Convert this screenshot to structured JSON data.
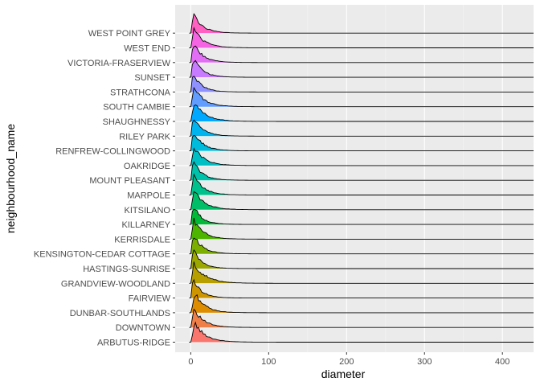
{
  "chart_data": {
    "type": "ridgeline",
    "xlabel": "diameter",
    "ylabel": "neighbourhood_name",
    "xlim": [
      -20,
      440
    ],
    "x_ticks": [
      0,
      100,
      200,
      300,
      400
    ],
    "x_tick_labels": [
      "0",
      "100",
      "200",
      "300",
      "400"
    ],
    "grid": true,
    "legend": "none",
    "categories": [
      "ARBUTUS-RIDGE",
      "DOWNTOWN",
      "DUNBAR-SOUTHLANDS",
      "FAIRVIEW",
      "GRANDVIEW-WOODLAND",
      "HASTINGS-SUNRISE",
      "KENSINGTON-CEDAR COTTAGE",
      "KERRISDALE",
      "KILLARNEY",
      "KITSILANO",
      "MARPOLE",
      "MOUNT PLEASANT",
      "OAKRIDGE",
      "RENFREW-COLLINGWOOD",
      "RILEY PARK",
      "SHAUGHNESSY",
      "SOUTH CAMBIE",
      "STRATHCONA",
      "SUNSET",
      "VICTORIA-FRASERVIEW",
      "WEST END",
      "WEST POINT GREY"
    ],
    "colors": [
      "#F8766D",
      "#EF7F49",
      "#DE8C00",
      "#CD9600",
      "#B79F00",
      "#9CA700",
      "#7CAE00",
      "#4DB400",
      "#00BA38",
      "#00BE67",
      "#00C08B",
      "#00C1AA",
      "#00BFC4",
      "#00BBDB",
      "#00B4EF",
      "#00A9FF",
      "#619CFF",
      "#8F91FF",
      "#C77CFF",
      "#E36EF6",
      "#F564E3",
      "#FF61C3"
    ],
    "x_range_max": 440,
    "density_series": [
      {
        "peak": 5,
        "tail": 45,
        "extent": 440
      },
      {
        "peak": 4,
        "tail": 40,
        "extent": 440
      },
      {
        "peak": 6,
        "tail": 40,
        "extent": 440
      },
      {
        "peak": 3,
        "tail": 35,
        "extent": 440
      },
      {
        "peak": 4,
        "tail": 50,
        "extent": 440
      },
      {
        "peak": 3,
        "tail": 35,
        "extent": 440
      },
      {
        "peak": 3,
        "tail": 40,
        "extent": 440
      },
      {
        "peak": 4,
        "tail": 40,
        "extent": 440
      },
      {
        "peak": 3,
        "tail": 35,
        "extent": 440
      },
      {
        "peak": 4,
        "tail": 45,
        "extent": 440
      },
      {
        "peak": 4,
        "tail": 40,
        "extent": 440
      },
      {
        "peak": 3,
        "tail": 38,
        "extent": 440
      },
      {
        "peak": 4,
        "tail": 42,
        "extent": 440
      },
      {
        "peak": 3,
        "tail": 40,
        "extent": 440
      },
      {
        "peak": 3,
        "tail": 38,
        "extent": 440
      },
      {
        "peak": 5,
        "tail": 45,
        "extent": 440
      },
      {
        "peak": 4,
        "tail": 42,
        "extent": 440
      },
      {
        "peak": 3,
        "tail": 35,
        "extent": 440
      },
      {
        "peak": 3,
        "tail": 38,
        "extent": 440
      },
      {
        "peak": 3,
        "tail": 40,
        "extent": 440
      },
      {
        "peak": 4,
        "tail": 42,
        "extent": 440
      },
      {
        "peak": 3,
        "tail": 40,
        "extent": 440
      }
    ]
  }
}
